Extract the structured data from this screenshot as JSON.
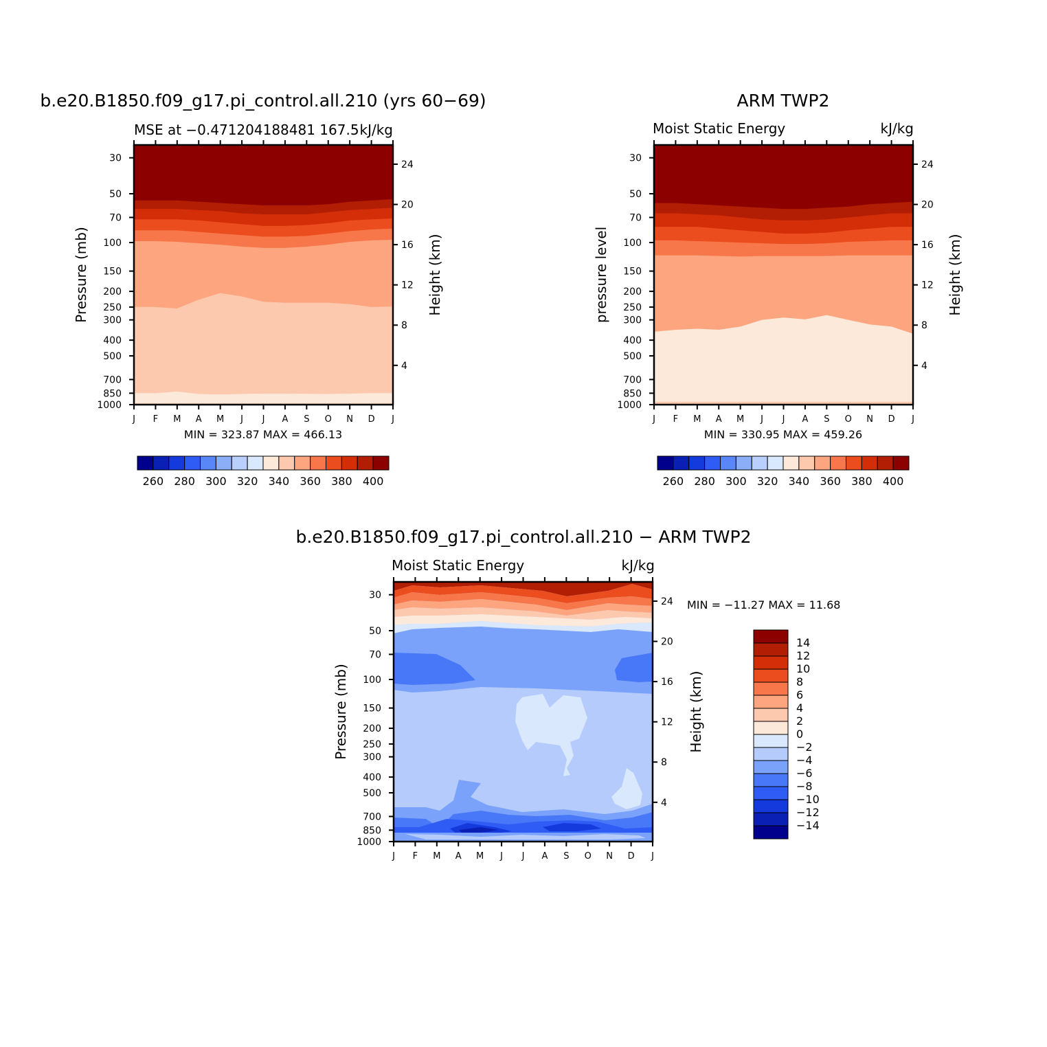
{
  "colors": {
    "mse_palette": [
      "#00008c",
      "#0a1fb4",
      "#1439dc",
      "#2f5cf5",
      "#5a87f7",
      "#8caef9",
      "#b8d0fb",
      "#d9e8fc",
      "#fde9d9",
      "#fcc9ae",
      "#fca57e",
      "#f8774a",
      "#ec4d1e",
      "#d32e08",
      "#b21e03",
      "#8c0000"
    ],
    "diff_palette": [
      "#00008c",
      "#0a1fb4",
      "#1439dc",
      "#2f5cf5",
      "#4878f8",
      "#7aa2fa",
      "#b4cbfc",
      "#d9e8fc",
      "#fde9d9",
      "#fcc9ae",
      "#fca57e",
      "#f8774a",
      "#ec4d1e",
      "#d32e08",
      "#b21e03",
      "#8c0000"
    ]
  },
  "chart_data": [
    {
      "id": "model",
      "type": "contour",
      "title": "b.e20.B1850.f09_g17.pi_control.all.210 (yrs 60-69)",
      "left_string": "MSE at -0.471204188481 167.5",
      "right_string": "kJ/kg",
      "ylabel": "Pressure (mb)",
      "ylabel_right": "Height (km)",
      "months": [
        "J",
        "F",
        "M",
        "A",
        "M",
        "J",
        "J",
        "A",
        "S",
        "O",
        "N",
        "D",
        "J"
      ],
      "pressure_ticks": [
        "30",
        "50",
        "70",
        "100",
        "150",
        "200",
        "250",
        "300",
        "400",
        "500",
        "700",
        "850",
        "1000"
      ],
      "height_ticks": [
        "24",
        "20",
        "16",
        "12",
        "8",
        "4"
      ],
      "min_max": "MIN =  323.87 MAX =  466.13",
      "levels": [
        260,
        270,
        280,
        290,
        300,
        310,
        320,
        330,
        340,
        350,
        360,
        370,
        380,
        390,
        400
      ],
      "label_bar": [
        "260",
        "280",
        "300",
        "320",
        "340",
        "360",
        "380",
        "400"
      ],
      "band_boundaries_pressure": {
        "330/340": [
          850,
          850,
          830,
          860,
          865,
          860,
          855,
          855,
          858,
          860,
          855,
          850,
          850
        ],
        "340/350": [
          250,
          250,
          255,
          225,
          205,
          215,
          232,
          235,
          235,
          235,
          240,
          250,
          248
        ],
        "350/360": [
          98,
          98,
          99,
          101,
          103,
          106,
          108,
          108,
          106,
          103,
          99,
          97,
          96
        ],
        "360/370": [
          84,
          84,
          84,
          86,
          88,
          90,
          92,
          92,
          91,
          88,
          85,
          83,
          82
        ],
        "370/380": [
          72,
          72,
          72,
          73,
          75,
          77,
          79,
          79,
          78,
          76,
          73,
          72,
          71
        ],
        "380/390": [
          62,
          62,
          62,
          63,
          64,
          66,
          67,
          67,
          67,
          65,
          63,
          62,
          61
        ],
        "390/400": [
          55,
          55,
          55,
          56,
          57,
          58,
          59,
          59,
          59,
          58,
          56,
          55,
          54
        ]
      }
    },
    {
      "id": "obs",
      "type": "contour",
      "title": "ARM TWP2",
      "left_string": "Moist Static Energy",
      "right_string": "kJ/kg",
      "ylabel": "pressure level",
      "ylabel_right": "Height (km)",
      "months": [
        "J",
        "F",
        "M",
        "A",
        "M",
        "J",
        "J",
        "A",
        "S",
        "O",
        "N",
        "D",
        "J"
      ],
      "pressure_ticks": [
        "30",
        "50",
        "70",
        "100",
        "150",
        "200",
        "250",
        "300",
        "400",
        "500",
        "700",
        "850",
        "1000"
      ],
      "height_ticks": [
        "24",
        "20",
        "16",
        "12",
        "8",
        "4"
      ],
      "min_max": "MIN =  330.95 MAX =  459.26",
      "levels": [
        260,
        270,
        280,
        290,
        300,
        310,
        320,
        330,
        340,
        350,
        360,
        370,
        380,
        390,
        400
      ],
      "label_bar": [
        "260",
        "280",
        "300",
        "320",
        "340",
        "360",
        "380",
        "400"
      ],
      "band_boundaries_pressure": {
        "340/350": [
          355,
          345,
          340,
          345,
          330,
          300,
          290,
          298,
          280,
          300,
          320,
          330,
          365
        ],
        "350/360": [
          120,
          120,
          120,
          121,
          122,
          121,
          121,
          121,
          121,
          120,
          120,
          120,
          120
        ],
        "360/370": [
          97,
          97,
          98,
          99,
          100,
          101,
          102,
          102,
          101,
          99,
          98,
          97,
          97
        ],
        "370/380": [
          80,
          80,
          80,
          82,
          84,
          86,
          88,
          88,
          87,
          84,
          82,
          80,
          80
        ],
        "380/390": [
          66,
          66,
          67,
          68,
          70,
          72,
          73,
          73,
          72,
          70,
          68,
          66,
          66
        ],
        "390/400": [
          57,
          57,
          58,
          59,
          60,
          61,
          62,
          62,
          61,
          60,
          58,
          57,
          56
        ]
      }
    },
    {
      "id": "diff",
      "type": "contour",
      "title": "b.e20.B1850.f09_g17.pi_control.all.210 - ARM TWP2",
      "left_string": "Moist Static Energy",
      "right_string": "kJ/kg",
      "ylabel": "Pressure (mb)",
      "ylabel_right": "Height (km)",
      "months": [
        "J",
        "F",
        "M",
        "A",
        "M",
        "J",
        "J",
        "A",
        "S",
        "O",
        "N",
        "D",
        "J"
      ],
      "pressure_ticks": [
        "30",
        "50",
        "70",
        "100",
        "150",
        "200",
        "250",
        "300",
        "400",
        "500",
        "700",
        "850",
        "1000"
      ],
      "height_ticks": [
        "24",
        "20",
        "16",
        "12",
        "8",
        "4"
      ],
      "min_max": "MIN = -11.27 MAX =   11.68",
      "levels": [
        -14,
        -12,
        -10,
        -8,
        -6,
        -4,
        -2,
        0,
        2,
        4,
        6,
        8,
        10,
        12,
        14
      ],
      "label_bar": [
        "14",
        "12",
        "10",
        "8",
        "6",
        "4",
        "2",
        "0",
        "-2",
        "-4",
        "-6",
        "-8",
        "-10",
        "-12",
        "-14"
      ],
      "features": [
        {
          "value_band": "8 to 14",
          "region": "upper stratosphere 25-45 mb"
        },
        {
          "value_band": "-8 to -6",
          "region": "70-100 mb, Jan-Apr and Dec"
        },
        {
          "value_band": "-2 to 0",
          "region": "150-300 mb, Jul-Sep and 500 mb Nov-Dec"
        },
        {
          "value_band": "-12 to -8",
          "region": "near surface 850 mb, Apr-May and Aug-Sep"
        }
      ]
    }
  ]
}
